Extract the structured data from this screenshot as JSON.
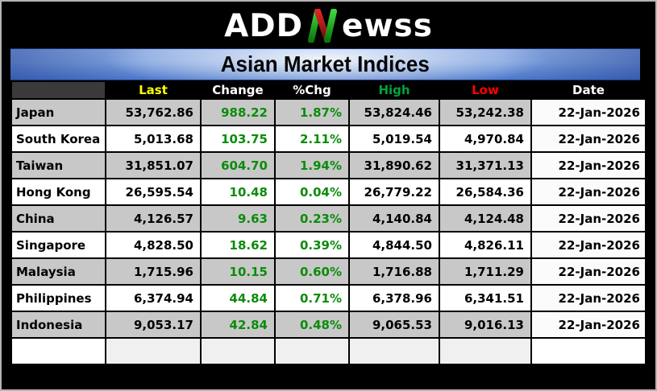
{
  "logo": {
    "part1": "ADD",
    "n_letter": "N",
    "part2": "ewss"
  },
  "title": "Asian Market Indices",
  "colors": {
    "title_bar_blue": "#4e79cb",
    "row_gray": "#c8c8c8",
    "row_white": "#ffffff",
    "date_column_bg": "#fbfbfb",
    "value_green": "#0a8c0a",
    "header_last_yellow": "#ffff00",
    "header_high_green": "#00a43c",
    "header_low_red": "#ff0000",
    "logo_green": "#1eb41e",
    "logo_red": "#c81a1a"
  },
  "chart_data": {
    "type": "table",
    "title": "Asian Market Indices",
    "columns": [
      {
        "label": "",
        "color": "#ffffff"
      },
      {
        "label": "Last",
        "color": "#ffff00"
      },
      {
        "label": "Change",
        "color": "#ffffff"
      },
      {
        "label": "%Chg",
        "color": "#ffffff"
      },
      {
        "label": "High",
        "color": "#00a43c"
      },
      {
        "label": "Low",
        "color": "#ff0000"
      },
      {
        "label": "Date",
        "color": "#ffffff"
      }
    ],
    "rows": [
      {
        "name": "Japan",
        "last": "53,762.86",
        "change": "988.22",
        "pct_chg": "1.87%",
        "high": "53,824.46",
        "low": "53,242.38",
        "date": "22-Jan-2026"
      },
      {
        "name": "South Korea",
        "last": "5,013.68",
        "change": "103.75",
        "pct_chg": "2.11%",
        "high": "5,019.54",
        "low": "4,970.84",
        "date": "22-Jan-2026"
      },
      {
        "name": "Taiwan",
        "last": "31,851.07",
        "change": "604.70",
        "pct_chg": "1.94%",
        "high": "31,890.62",
        "low": "31,371.13",
        "date": "22-Jan-2026"
      },
      {
        "name": "Hong Kong",
        "last": "26,595.54",
        "change": "10.48",
        "pct_chg": "0.04%",
        "high": "26,779.22",
        "low": "26,584.36",
        "date": "22-Jan-2026"
      },
      {
        "name": "China",
        "last": "4,126.57",
        "change": "9.63",
        "pct_chg": "0.23%",
        "high": "4,140.84",
        "low": "4,124.48",
        "date": "22-Jan-2026"
      },
      {
        "name": "Singapore",
        "last": "4,828.50",
        "change": "18.62",
        "pct_chg": "0.39%",
        "high": "4,844.50",
        "low": "4,826.11",
        "date": "22-Jan-2026"
      },
      {
        "name": "Malaysia",
        "last": "1,715.96",
        "change": "10.15",
        "pct_chg": "0.60%",
        "high": "1,716.88",
        "low": "1,711.29",
        "date": "22-Jan-2026"
      },
      {
        "name": "Philippines",
        "last": "6,374.94",
        "change": "44.84",
        "pct_chg": "0.71%",
        "high": "6,378.96",
        "low": "6,341.51",
        "date": "22-Jan-2026"
      },
      {
        "name": "Indonesia",
        "last": "9,053.17",
        "change": "42.84",
        "pct_chg": "0.48%",
        "high": "9,065.53",
        "low": "9,016.13",
        "date": "22-Jan-2026"
      }
    ],
    "has_trailing_empty_row": true,
    "layout": {
      "first_row_shade": "gray",
      "alternating": true,
      "grid": "black 2px lines"
    }
  }
}
